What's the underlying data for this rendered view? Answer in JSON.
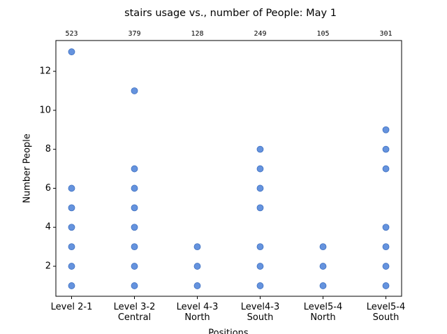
{
  "chart_data": {
    "type": "scatter",
    "title": "stairs usage vs., number of People:  May 1",
    "x_label": "Positions",
    "y_label": "Number People",
    "categories": [
      "Level 2-1",
      "Level 3-2\nCentral",
      "Level 4-3\nNorth",
      "Level4-3\nSouth",
      "Level5-4\nNorth",
      "Level5-4\nSouth"
    ],
    "counts": [
      523,
      379,
      128,
      249,
      105,
      301
    ],
    "values": [
      [
        1,
        2,
        3,
        4,
        5,
        6,
        13
      ],
      [
        1,
        2,
        3,
        4,
        5,
        6,
        7,
        11
      ],
      [
        1,
        2,
        3
      ],
      [
        1,
        2,
        3,
        5,
        6,
        7,
        8
      ],
      [
        1,
        2,
        3
      ],
      [
        1,
        2,
        3,
        4,
        7,
        8,
        9
      ]
    ],
    "color": "#4a80d8",
    "ylim": [
      0.46,
      13.58
    ],
    "yticks": [
      2,
      4,
      6,
      8,
      10,
      12
    ]
  }
}
